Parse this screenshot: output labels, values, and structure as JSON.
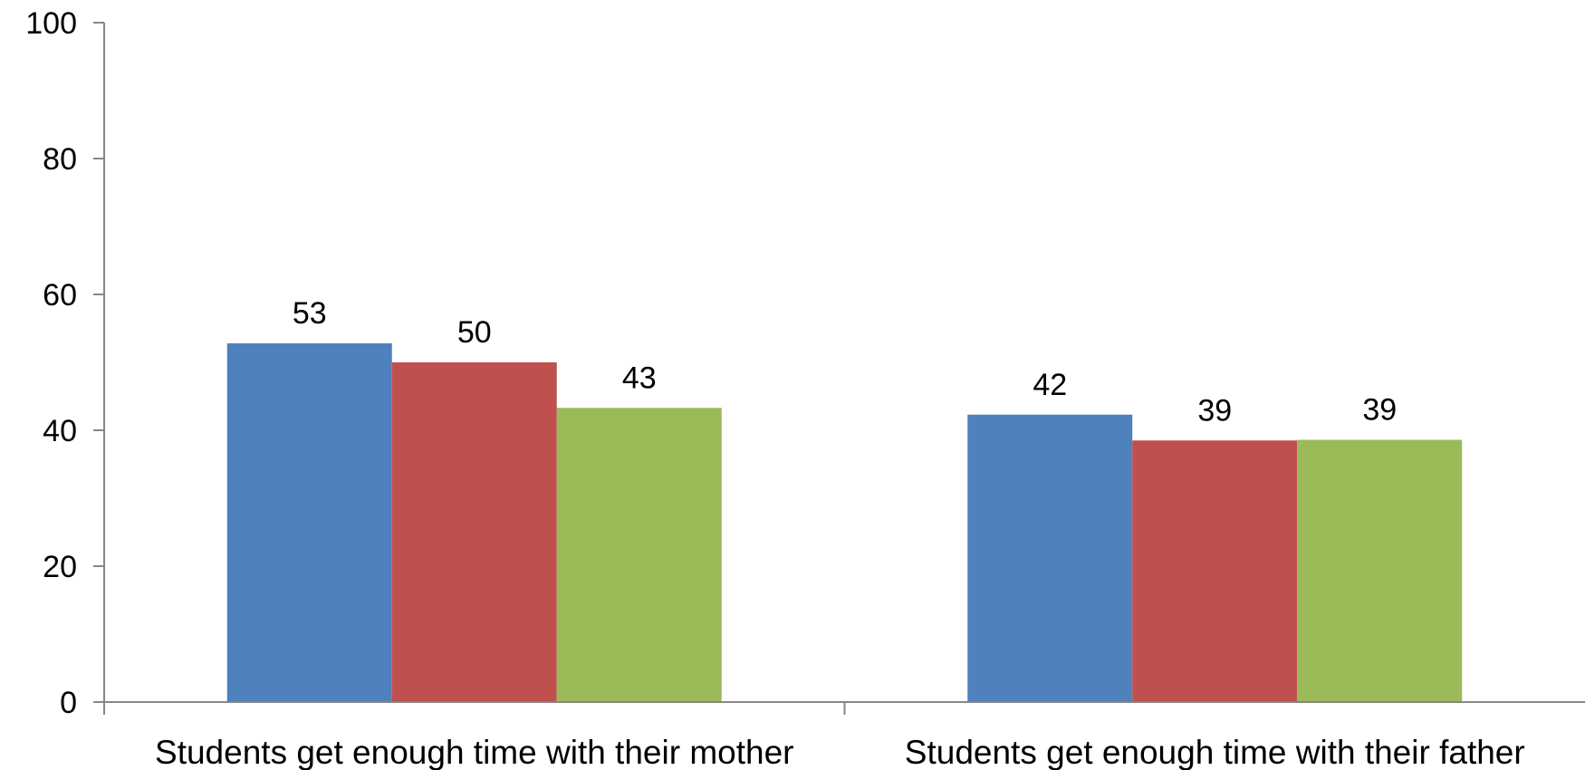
{
  "chart_data": {
    "type": "bar",
    "title": "",
    "xlabel": "",
    "ylabel": "",
    "ylim": [
      0,
      100
    ],
    "yticks": [
      0,
      20,
      40,
      60,
      80,
      100
    ],
    "grid": false,
    "legend": "none",
    "categories": [
      "Students get enough time with their mother",
      "Students get enough time with their father"
    ],
    "series": [
      {
        "color": "#4F81BD",
        "values": [
          52.8,
          42.3
        ],
        "labels": [
          "53",
          "42"
        ]
      },
      {
        "color": "#C0504D",
        "values": [
          50.0,
          38.5
        ],
        "labels": [
          "50",
          "39"
        ]
      },
      {
        "color": "#9BBB59",
        "values": [
          43.3,
          38.6
        ],
        "labels": [
          "43",
          "39"
        ]
      }
    ]
  }
}
